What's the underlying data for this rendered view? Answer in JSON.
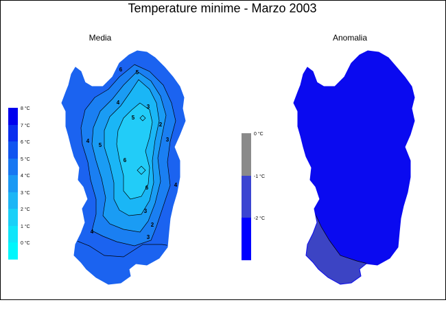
{
  "title": "Temperature minime - Marzo 2003",
  "panels": {
    "media": {
      "subtitle": "Media",
      "legend": [
        {
          "label": "8 °C",
          "color": "#0000ee"
        },
        {
          "label": "7 °C",
          "color": "#0a2eef"
        },
        {
          "label": "6 °C",
          "color": "#1155f0"
        },
        {
          "label": "5 °C",
          "color": "#1777f2"
        },
        {
          "label": "4 °C",
          "color": "#1a99f4"
        },
        {
          "label": "3 °C",
          "color": "#1db6f6"
        },
        {
          "label": "2 °C",
          "color": "#1ad0f8"
        },
        {
          "label": "1 °C",
          "color": "#10e5fa"
        },
        {
          "label": "0 °C",
          "color": "#00f6fc"
        }
      ],
      "contour_labels": [
        "6",
        "5",
        "4",
        "3",
        "2",
        "3",
        "4",
        "5",
        "6",
        "4",
        "3",
        "2",
        "3",
        "4",
        "5",
        "6"
      ]
    },
    "anomalia": {
      "subtitle": "Anomalia",
      "legend": [
        {
          "label": "0 °C",
          "color": "#8a8a8a"
        },
        {
          "label": "-1 °C",
          "color": "#3b44d1"
        },
        {
          "label": "-2 °C",
          "color": "#0000ff"
        }
      ]
    }
  },
  "colors": {
    "outer": "#1b63f0",
    "ring1": "#1a7ff2",
    "ring2": "#1a9cf4",
    "ring3": "#1ab6f6",
    "core": "#22ccf8",
    "anom_main": "#0a0af0",
    "anom_south": "#3c44c4"
  }
}
